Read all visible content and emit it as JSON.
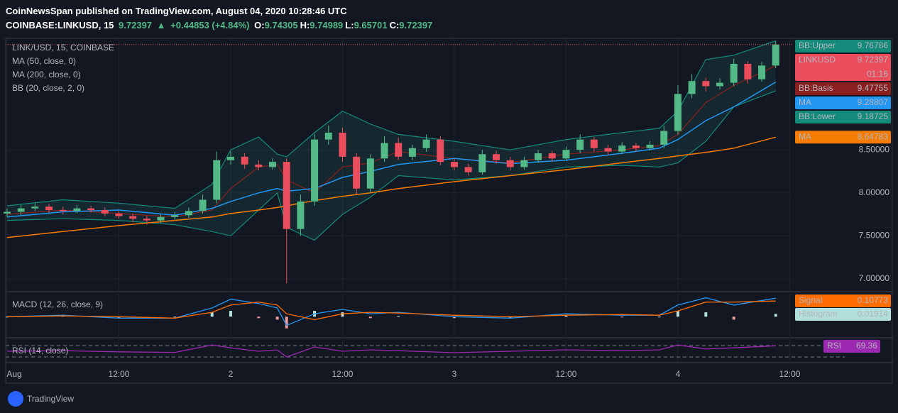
{
  "chart_data": {
    "type": "candlestick",
    "header": {
      "publisher": "CoinNewsSpan published on TradingView.com, August 04, 2020 10:28:46 UTC",
      "symbol": "COINBASE:LINKUSD, 15",
      "change": "+0.44853 (+4.84%)",
      "ohlc": [
        {
          "key": "O:",
          "value": 9.74305
        },
        {
          "key": "H:",
          "value": 9.74989
        },
        {
          "key": "L:",
          "value": 9.65701
        }
      ],
      "close_key": "C:"
    },
    "legend": "LINK/USD, 15, COINBASE",
    "xlim": [
      -0.15,
      84.27
    ],
    "xticks": [
      {
        "value": 0,
        "label": "Aug"
      },
      {
        "value": 12,
        "label": "12:00"
      },
      {
        "value": 24,
        "label": "2"
      },
      {
        "value": 36,
        "label": "12:00"
      },
      {
        "value": 48,
        "label": "3"
      },
      {
        "value": 60,
        "label": "12:00"
      },
      {
        "value": 72,
        "label": "4"
      },
      {
        "value": 84,
        "label": "12:00"
      }
    ],
    "ylim": [
      6.86,
      9.78
    ],
    "yticks": [
      {
        "value": 7,
        "label": "7.00000"
      },
      {
        "value": 7.5,
        "label": "7.50000"
      },
      {
        "value": 8,
        "label": "8.00000"
      },
      {
        "value": 8.5,
        "label": "8.50000"
      }
    ],
    "grid": true,
    "candles": {
      "label": "LINKUSD",
      "countdown": "01:16",
      "up_color": "#53b987",
      "down_color": "#eb4d5c",
      "x": [
        0,
        1.5,
        3,
        4.5,
        6,
        7.5,
        9,
        10.5,
        12,
        13.5,
        15,
        16.5,
        18,
        19.5,
        21,
        22.5,
        24,
        25.5,
        27,
        28.5,
        30,
        31.5,
        33,
        34.5,
        36,
        37.5,
        39,
        40.5,
        42,
        43.5,
        45,
        46.5,
        48,
        49.5,
        51,
        52.5,
        54,
        55.5,
        57,
        58.5,
        60,
        61.5,
        63,
        64.5,
        66,
        67.5,
        69,
        70.5,
        72,
        73.5,
        75,
        76.5,
        78,
        79.5,
        81,
        82.5
      ],
      "open": [
        7.76,
        7.78,
        7.82,
        7.84,
        7.8,
        7.79,
        7.82,
        7.8,
        7.76,
        7.73,
        7.7,
        7.68,
        7.72,
        7.74,
        7.79,
        7.92,
        8.38,
        8.42,
        8.33,
        8.3,
        8.36,
        7.58,
        7.9,
        8.62,
        8.7,
        8.42,
        8.05,
        8.4,
        8.58,
        8.42,
        8.52,
        8.62,
        8.36,
        8.3,
        8.24,
        8.45,
        8.38,
        8.3,
        8.38,
        8.46,
        8.4,
        8.5,
        8.62,
        8.52,
        8.48,
        8.55,
        8.52,
        8.56,
        8.72,
        9.15,
        9.3,
        9.24,
        9.28,
        9.5,
        9.32,
        9.48
      ],
      "high": [
        7.82,
        7.86,
        7.88,
        7.87,
        7.84,
        7.86,
        7.85,
        7.83,
        7.79,
        7.76,
        7.73,
        7.75,
        7.78,
        7.83,
        7.98,
        8.48,
        8.48,
        8.46,
        8.38,
        8.4,
        8.4,
        7.98,
        8.68,
        8.78,
        8.76,
        8.46,
        8.45,
        8.66,
        8.64,
        8.56,
        8.68,
        8.66,
        8.4,
        8.34,
        8.5,
        8.49,
        8.42,
        8.42,
        8.5,
        8.49,
        8.54,
        8.68,
        8.65,
        8.56,
        8.59,
        8.58,
        8.6,
        8.78,
        9.25,
        9.38,
        9.34,
        9.33,
        9.56,
        9.53,
        9.52,
        9.76
      ],
      "low": [
        7.72,
        7.74,
        7.79,
        7.77,
        7.75,
        7.76,
        7.77,
        7.73,
        7.7,
        7.66,
        7.63,
        7.65,
        7.69,
        7.71,
        7.76,
        7.88,
        8.33,
        8.28,
        8.26,
        8.27,
        6.95,
        7.5,
        7.85,
        8.56,
        8.36,
        7.98,
        8.0,
        8.36,
        8.38,
        8.38,
        8.48,
        8.32,
        8.26,
        8.2,
        8.21,
        8.34,
        8.26,
        8.27,
        8.35,
        8.36,
        8.37,
        8.46,
        8.48,
        8.44,
        8.45,
        8.48,
        8.49,
        8.52,
        8.68,
        9.1,
        9.18,
        9.2,
        9.24,
        9.27,
        9.29,
        9.45
      ],
      "close": [
        7.78,
        7.82,
        7.84,
        7.8,
        7.79,
        7.82,
        7.8,
        7.76,
        7.73,
        7.7,
        7.68,
        7.72,
        7.74,
        7.79,
        7.92,
        8.38,
        8.42,
        8.33,
        8.3,
        8.36,
        7.58,
        7.9,
        8.62,
        8.7,
        8.42,
        8.05,
        8.4,
        8.58,
        8.42,
        8.52,
        8.62,
        8.36,
        8.3,
        8.24,
        8.45,
        8.38,
        8.3,
        8.38,
        8.46,
        8.4,
        8.5,
        8.62,
        8.52,
        8.48,
        8.55,
        8.52,
        8.56,
        8.72,
        9.15,
        9.3,
        9.24,
        9.28,
        9.5,
        9.32,
        9.48,
        9.72397
      ]
    },
    "overlay_x": [
      0,
      6,
      12,
      18,
      22,
      24,
      27,
      29,
      30,
      33,
      36,
      39,
      42,
      48,
      54,
      60,
      66,
      70,
      72,
      75,
      78,
      82.5
    ],
    "overlays": [
      {
        "name": "MA (50, close, 0)",
        "label": "MA",
        "color": "#2196f3",
        "values": [
          7.72,
          7.78,
          7.8,
          7.74,
          7.82,
          7.9,
          8.0,
          8.05,
          8.02,
          8.05,
          8.18,
          8.25,
          8.33,
          8.4,
          8.34,
          8.38,
          8.46,
          8.52,
          8.62,
          8.84,
          9.0,
          9.28807
        ]
      },
      {
        "name": "MA (200, close, 0)",
        "label": "MA",
        "color": "#f57c00",
        "values": [
          7.48,
          7.55,
          7.62,
          7.68,
          7.72,
          7.76,
          7.8,
          7.83,
          7.85,
          7.91,
          7.96,
          8.0,
          8.05,
          8.13,
          8.2,
          8.27,
          8.35,
          8.4,
          8.43,
          8.47,
          8.52,
          8.64783
        ]
      }
    ],
    "bb": {
      "name": "BB (20, close, 2, 0)",
      "fill": "#26a69a",
      "bands": [
        {
          "label": "BB:Upper",
          "color": "#138a7a",
          "values": [
            7.85,
            7.92,
            7.88,
            7.82,
            8.1,
            8.5,
            8.65,
            8.45,
            8.42,
            8.7,
            8.95,
            8.8,
            8.68,
            8.6,
            8.5,
            8.62,
            8.7,
            8.75,
            8.95,
            9.55,
            9.6,
            9.76786
          ]
        },
        {
          "label": "BB:Basis",
          "color": "#8b1f1f",
          "values": [
            7.75,
            7.8,
            7.76,
            7.72,
            7.8,
            8.05,
            8.3,
            8.33,
            8.15,
            8.0,
            8.3,
            8.35,
            8.48,
            8.4,
            8.35,
            8.45,
            8.5,
            8.55,
            8.68,
            9.05,
            9.25,
            9.47755
          ]
        },
        {
          "label": "BB:Lower",
          "color": "#138a7a",
          "values": [
            7.68,
            7.7,
            7.68,
            7.63,
            7.55,
            7.5,
            7.8,
            8.0,
            7.6,
            7.45,
            7.75,
            7.95,
            8.2,
            8.15,
            8.2,
            8.3,
            8.32,
            8.3,
            8.35,
            8.6,
            9.0,
            9.18725
          ]
        }
      ]
    },
    "macd": {
      "name": "MACD (12, 26, close, 9)",
      "ylim": [
        -0.14,
        0.167
      ],
      "line": {
        "color": "#2196f3",
        "values": [
          0.0,
          0.01,
          -0.01,
          -0.01,
          0.06,
          0.12,
          0.09,
          0.06,
          -0.06,
          0.02,
          0.05,
          0.02,
          0.03,
          0.0,
          -0.01,
          0.02,
          0.01,
          0.01,
          0.08,
          0.13,
          0.08,
          0.12687
        ]
      },
      "signal": {
        "label": "Signal",
        "color": "#ff6d00",
        "values": [
          0.0,
          0.005,
          0.0,
          -0.01,
          0.03,
          0.08,
          0.1,
          0.08,
          0.02,
          -0.02,
          0.02,
          0.03,
          0.025,
          0.01,
          0.0,
          0.01,
          0.015,
          0.01,
          0.04,
          0.1,
          0.1,
          0.10773
        ]
      },
      "histogram": {
        "label": "Histogram",
        "up_color": "#b2dfdb",
        "down_color": "#ef9a9a",
        "values": [
          0,
          0.005,
          -0.01,
          0,
          0.03,
          0.04,
          -0.01,
          -0.02,
          -0.08,
          0.04,
          0.03,
          -0.01,
          0.005,
          -0.01,
          -0.01,
          0.01,
          -0.005,
          0,
          0.04,
          0.03,
          -0.02,
          0.01914
        ]
      }
    },
    "rsi": {
      "name": "RSI (14, close)",
      "label": "RSI",
      "color": "#9c27b0",
      "ylim": [
        12.5,
        95
      ],
      "levels": [
        70,
        30
      ],
      "values": [
        50,
        52,
        48,
        46,
        72,
        62,
        50,
        55,
        30,
        65,
        50,
        55,
        52,
        45,
        50,
        55,
        52,
        55,
        72,
        58,
        62,
        69.36
      ]
    },
    "footer": "TradingView"
  }
}
